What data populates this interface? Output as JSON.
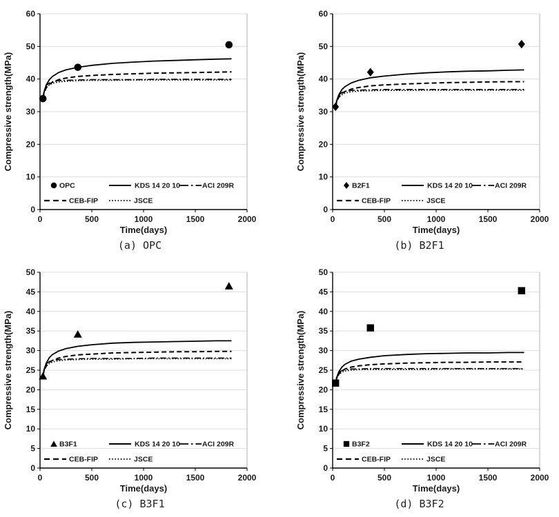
{
  "colors": {
    "curve": "#000000",
    "marker": "#000000",
    "grid": "#dddddd",
    "plot_border": "#bfbfbf",
    "axis": "#000000",
    "text": "#1a1a1a"
  },
  "chart_data": [
    {
      "type": "line+scatter",
      "caption": "(a) OPC",
      "xlabel": "Time(days)",
      "ylabel": "Compressive strength(MPa)",
      "xlim": [
        0,
        2000
      ],
      "xticks": [
        0,
        500,
        1000,
        1500,
        2000
      ],
      "ylim": [
        0,
        60
      ],
      "yticks": [
        0,
        10,
        20,
        30,
        40,
        50,
        60
      ],
      "grid": "horizontal",
      "experimental": {
        "label": "OPC",
        "marker": "circle",
        "points": [
          [
            28,
            34.0
          ],
          [
            365,
            43.6
          ],
          [
            1825,
            50.5
          ]
        ]
      },
      "x_samples": [
        28,
        40,
        60,
        90,
        120,
        180,
        250,
        365,
        500,
        700,
        900,
        1100,
        1300,
        1500,
        1700,
        1850
      ],
      "series": [
        {
          "name": "KDS 14 20 10",
          "style": "solid",
          "y": [
            34.2,
            36.2,
            38.2,
            39.8,
            40.8,
            42.0,
            42.8,
            43.6,
            44.2,
            44.8,
            45.2,
            45.5,
            45.7,
            45.9,
            46.1,
            46.2
          ]
        },
        {
          "name": "CEB-FIP",
          "style": "dashed",
          "y": [
            34.2,
            35.8,
            37.3,
            38.4,
            39.0,
            39.8,
            40.3,
            40.8,
            41.1,
            41.4,
            41.6,
            41.8,
            41.9,
            42.0,
            42.1,
            42.2
          ]
        },
        {
          "name": "ACI 209R",
          "style": "dashdot",
          "y": [
            34.2,
            36.5,
            38.0,
            38.8,
            39.2,
            39.5,
            39.6,
            39.7,
            39.8,
            39.8,
            39.8,
            39.9,
            39.9,
            39.9,
            39.9,
            39.9
          ]
        },
        {
          "name": "JSCE",
          "style": "dotted",
          "y": [
            34.2,
            35.9,
            37.3,
            38.2,
            38.7,
            39.1,
            39.3,
            39.5,
            39.6,
            39.6,
            39.7,
            39.7,
            39.7,
            39.7,
            39.7,
            39.7
          ]
        }
      ],
      "legend_rows": [
        [
          "OPC",
          "KDS 14 20 10",
          "ACI 209R"
        ],
        [
          "CEB-FIP",
          "JSCE"
        ]
      ]
    },
    {
      "type": "line+scatter",
      "caption": "(b) B2F1",
      "xlabel": "Time(days)",
      "ylabel": "Compressive strength(MPa)",
      "xlim": [
        0,
        2000
      ],
      "xticks": [
        0,
        500,
        1000,
        1500,
        2000
      ],
      "ylim": [
        0,
        60
      ],
      "yticks": [
        0,
        10,
        20,
        30,
        40,
        50,
        60
      ],
      "grid": "horizontal",
      "experimental": {
        "label": "B2F1",
        "marker": "diamond",
        "points": [
          [
            28,
            31.5
          ],
          [
            365,
            42.1
          ],
          [
            1825,
            50.7
          ]
        ]
      },
      "x_samples": [
        28,
        40,
        60,
        90,
        120,
        180,
        250,
        365,
        500,
        700,
        900,
        1100,
        1300,
        1500,
        1700,
        1850
      ],
      "series": [
        {
          "name": "KDS 14 20 10",
          "style": "solid",
          "y": [
            31.5,
            33.4,
            35.2,
            36.8,
            37.7,
            38.8,
            39.6,
            40.4,
            40.9,
            41.5,
            41.9,
            42.2,
            42.4,
            42.5,
            42.7,
            42.8
          ]
        },
        {
          "name": "CEB-FIP",
          "style": "dashed",
          "y": [
            31.5,
            33.1,
            34.5,
            35.6,
            36.2,
            36.9,
            37.4,
            37.9,
            38.2,
            38.5,
            38.7,
            38.9,
            39.0,
            39.1,
            39.2,
            39.2
          ]
        },
        {
          "name": "ACI 209R",
          "style": "dashdot",
          "y": [
            31.5,
            33.7,
            35.1,
            35.9,
            36.2,
            36.5,
            36.6,
            36.7,
            36.8,
            36.8,
            36.8,
            36.8,
            36.8,
            36.8,
            36.8,
            36.8
          ]
        },
        {
          "name": "JSCE",
          "style": "dotted",
          "y": [
            31.5,
            33.1,
            34.4,
            35.2,
            35.7,
            36.1,
            36.3,
            36.4,
            36.5,
            36.5,
            36.6,
            36.6,
            36.6,
            36.6,
            36.6,
            36.6
          ]
        }
      ],
      "legend_rows": [
        [
          "B2F1",
          "KDS 14 20 10",
          "ACI 209R"
        ],
        [
          "CEB-FIP",
          "JSCE"
        ]
      ]
    },
    {
      "type": "line+scatter",
      "caption": "(c) B3F1",
      "xlabel": "Time(days)",
      "ylabel": "Compressive strength(MPa)",
      "xlim": [
        0,
        2000
      ],
      "xticks": [
        0,
        500,
        1000,
        1500,
        2000
      ],
      "ylim": [
        0,
        50
      ],
      "yticks": [
        0,
        5,
        10,
        15,
        20,
        25,
        30,
        35,
        40,
        45,
        50
      ],
      "grid": "horizontal",
      "experimental": {
        "label": "B3F1",
        "marker": "triangle",
        "points": [
          [
            28,
            23.5
          ],
          [
            365,
            34.2
          ],
          [
            1825,
            46.5
          ]
        ]
      },
      "x_samples": [
        28,
        40,
        60,
        90,
        120,
        180,
        250,
        365,
        500,
        700,
        900,
        1100,
        1300,
        1500,
        1700,
        1850
      ],
      "series": [
        {
          "name": "KDS 14 20 10",
          "style": "solid",
          "y": [
            23.5,
            25.2,
            26.8,
            28.2,
            29.0,
            29.9,
            30.5,
            31.1,
            31.5,
            31.9,
            32.1,
            32.2,
            32.3,
            32.4,
            32.5,
            32.5
          ]
        },
        {
          "name": "CEB-FIP",
          "style": "dashed",
          "y": [
            23.5,
            24.9,
            26.1,
            27.0,
            27.5,
            28.1,
            28.5,
            28.9,
            29.1,
            29.4,
            29.5,
            29.6,
            29.7,
            29.7,
            29.8,
            29.8
          ]
        },
        {
          "name": "ACI 209R",
          "style": "dashdot",
          "y": [
            23.5,
            25.4,
            26.6,
            27.2,
            27.5,
            27.7,
            27.8,
            27.9,
            28.0,
            28.0,
            28.0,
            28.1,
            28.1,
            28.1,
            28.1,
            28.1
          ]
        },
        {
          "name": "JSCE",
          "style": "dotted",
          "y": [
            23.5,
            24.9,
            26.0,
            26.7,
            27.1,
            27.4,
            27.6,
            27.7,
            27.8,
            27.8,
            27.9,
            27.9,
            27.9,
            27.9,
            27.9,
            27.9
          ]
        }
      ],
      "legend_rows": [
        [
          "B3F1",
          "KDS 14 20 10",
          "ACI 209R"
        ],
        [
          "CEB-FIP",
          "JSCE"
        ]
      ]
    },
    {
      "type": "line+scatter",
      "caption": "(d) B3F2",
      "xlabel": "Time(days)",
      "ylabel": "Compressive strength(MPa)",
      "xlim": [
        0,
        2000
      ],
      "xticks": [
        0,
        500,
        1000,
        1500,
        2000
      ],
      "ylim": [
        0,
        50
      ],
      "yticks": [
        0,
        5,
        10,
        15,
        20,
        25,
        30,
        35,
        40,
        45,
        50
      ],
      "grid": "horizontal",
      "experimental": {
        "label": "B3F2",
        "marker": "square",
        "points": [
          [
            28,
            21.7
          ],
          [
            365,
            35.8
          ],
          [
            1825,
            45.3
          ]
        ]
      },
      "x_samples": [
        28,
        40,
        60,
        90,
        120,
        180,
        250,
        365,
        500,
        700,
        900,
        1100,
        1300,
        1500,
        1700,
        1850
      ],
      "series": [
        {
          "name": "KDS 14 20 10",
          "style": "solid",
          "y": [
            21.7,
            23.2,
            24.6,
            25.8,
            26.5,
            27.3,
            27.8,
            28.3,
            28.7,
            29.0,
            29.2,
            29.3,
            29.4,
            29.4,
            29.5,
            29.5
          ]
        },
        {
          "name": "CEB-FIP",
          "style": "dashed",
          "y": [
            21.7,
            23.0,
            24.0,
            24.8,
            25.3,
            25.8,
            26.1,
            26.4,
            26.6,
            26.8,
            26.9,
            27.0,
            27.0,
            27.1,
            27.1,
            27.1
          ]
        },
        {
          "name": "ACI 209R",
          "style": "dashdot",
          "y": [
            21.7,
            23.4,
            24.4,
            24.9,
            25.1,
            25.3,
            25.3,
            25.4,
            25.4,
            25.4,
            25.4,
            25.4,
            25.4,
            25.4,
            25.4,
            25.4
          ]
        },
        {
          "name": "JSCE",
          "style": "dotted",
          "y": [
            21.7,
            22.9,
            23.9,
            24.5,
            24.8,
            25.0,
            25.1,
            25.2,
            25.2,
            25.2,
            25.2,
            25.3,
            25.3,
            25.3,
            25.3,
            25.3
          ]
        }
      ],
      "legend_rows": [
        [
          "B3F2",
          "KDS 14 20 10",
          "ACI 209R"
        ],
        [
          "CEB-FIP",
          "JSCE"
        ]
      ]
    }
  ]
}
